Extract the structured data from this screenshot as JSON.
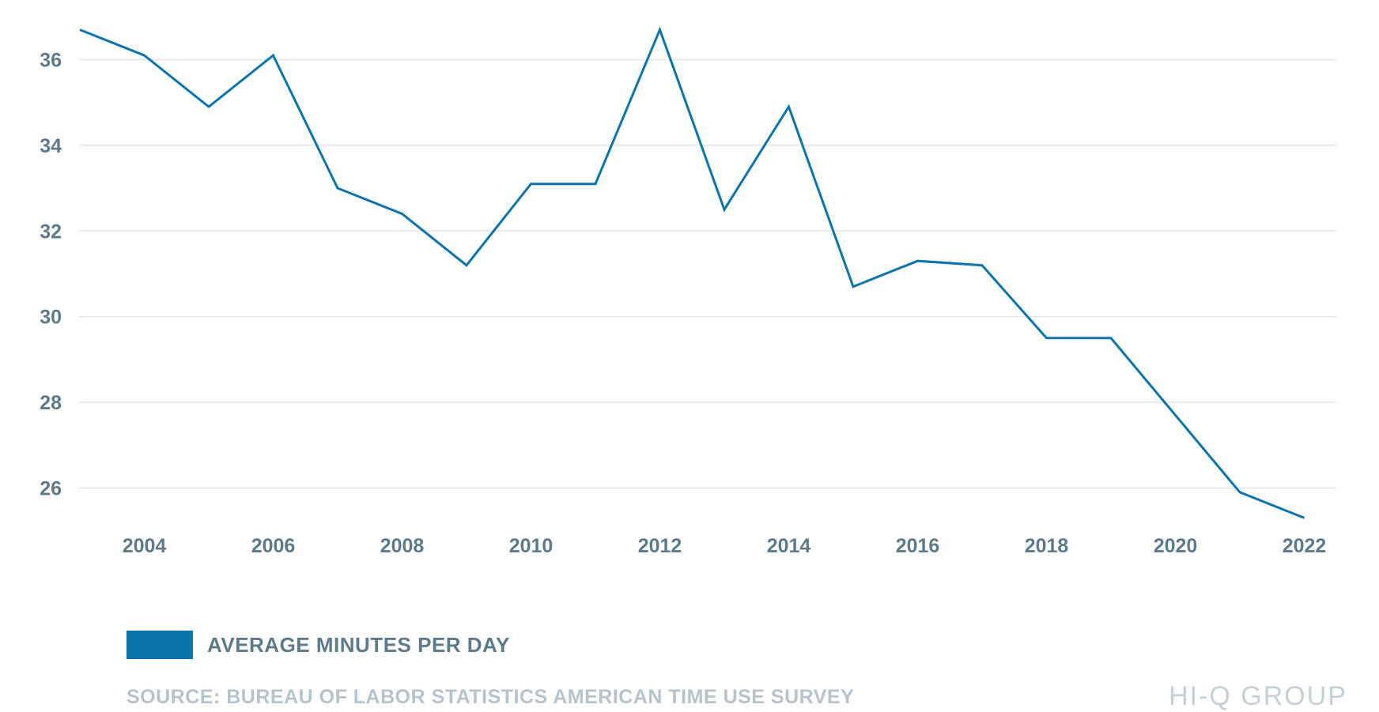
{
  "chart_data": {
    "type": "line",
    "title": "",
    "xlabel": "",
    "ylabel": "",
    "x": [
      2003,
      2004,
      2005,
      2006,
      2007,
      2008,
      2009,
      2010,
      2011,
      2012,
      2013,
      2014,
      2015,
      2016,
      2017,
      2018,
      2019,
      2020,
      2021,
      2022
    ],
    "series": [
      {
        "name": "AVERAGE MINUTES PER DAY",
        "color": "#0b74ab",
        "values": [
          36.7,
          36.1,
          34.9,
          36.1,
          33.0,
          32.4,
          31.2,
          33.1,
          33.1,
          36.7,
          32.5,
          34.9,
          30.7,
          31.3,
          31.2,
          29.5,
          29.5,
          null,
          25.9,
          25.3
        ]
      }
    ],
    "xticks": [
      "2004",
      "2006",
      "2008",
      "2010",
      "2012",
      "2014",
      "2016",
      "2018",
      "2020",
      "2022"
    ],
    "yticks": [
      26,
      28,
      30,
      32,
      34,
      36
    ],
    "xlim": [
      2003,
      2022.7
    ],
    "ylim": [
      25,
      37.2
    ],
    "grid": "horizontal",
    "legend_position": "bottom-left"
  },
  "legend": {
    "label": "AVERAGE MINUTES PER DAY",
    "color": "#0b74ab"
  },
  "source_note": "SOURCE: BUREAU OF LABOR STATISTICS AMERICAN TIME USE SURVEY",
  "brand": "HI-Q  GROUP"
}
